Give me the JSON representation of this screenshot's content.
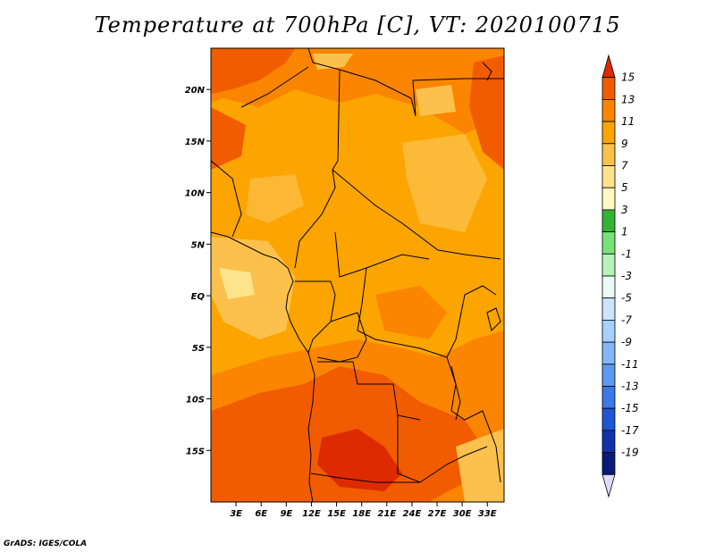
{
  "title": "Temperature at 700hPa [C], VT: 2020100715",
  "credit": "GrADS: IGES/COLA",
  "map": {
    "lon_range": [
      0,
      35
    ],
    "lat_range": [
      -20,
      24
    ],
    "lon_ticks": [
      "3E",
      "6E",
      "9E",
      "12E",
      "15E",
      "18E",
      "21E",
      "24E",
      "27E",
      "30E",
      "33E"
    ],
    "lon_tick_values": [
      3,
      6,
      9,
      12,
      15,
      18,
      21,
      24,
      27,
      30,
      33
    ],
    "lat_ticks": [
      "20N",
      "15N",
      "10N",
      "5N",
      "EQ",
      "5S",
      "10S",
      "15S"
    ],
    "lat_tick_values": [
      20,
      15,
      10,
      5,
      0,
      -5,
      -10,
      -15
    ]
  },
  "colorbar": {
    "labels": [
      "15",
      "13",
      "11",
      "9",
      "7",
      "5",
      "3",
      "1",
      "-1",
      "-3",
      "-5",
      "-7",
      "-9",
      "-11",
      "-13",
      "-15",
      "-17",
      "-19"
    ],
    "colors": [
      "#dd2a00",
      "#f25c00",
      "#fb8500",
      "#fca400",
      "#fcc14c",
      "#fde38c",
      "#fff8c2",
      "#32b432",
      "#78e278",
      "#b8f4b8",
      "#e8fcf4",
      "#cde5fc",
      "#a7d0fc",
      "#82b6f8",
      "#5b99f2",
      "#3b78e8",
      "#1f56d4",
      "#1133aa",
      "#0a1a78",
      "#dcdcfc"
    ]
  }
}
